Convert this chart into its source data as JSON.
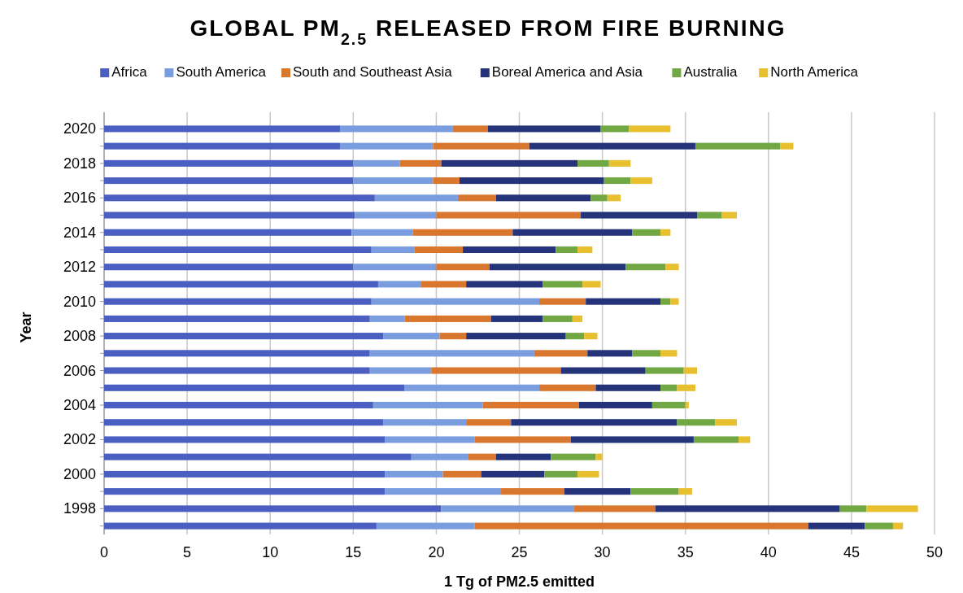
{
  "chart_data": {
    "type": "bar",
    "orientation": "horizontal",
    "stacked": true,
    "title": "GLOBAL PM$_{2.5}$ RELEASED FROM FIRE BURNING",
    "xlabel": "1 Tg of PM2.5 emitted",
    "ylabel": "Year",
    "categories": [
      "2020",
      null,
      "2018",
      null,
      "2016",
      null,
      "2014",
      null,
      "2012",
      null,
      "2010",
      null,
      "2008",
      null,
      "2006",
      null,
      "2004",
      null,
      "2002",
      null,
      "2000",
      null,
      "1998",
      null
    ],
    "series": [
      {
        "name": "Africa",
        "color": "#4a5fc1",
        "values": [
          14.2,
          14.2,
          15.0,
          15.0,
          16.3,
          15.1,
          14.9,
          16.1,
          15.0,
          16.5,
          16.1,
          16.0,
          16.8,
          16.0,
          16.0,
          18.1,
          16.2,
          16.8,
          16.9,
          18.5,
          16.9,
          16.9,
          20.3,
          16.4
        ]
      },
      {
        "name": "South America",
        "color": "#7a9de0",
        "values": [
          6.8,
          5.6,
          2.8,
          4.8,
          5.0,
          4.9,
          3.7,
          2.6,
          5.0,
          2.6,
          10.1,
          2.1,
          3.4,
          9.9,
          3.7,
          8.1,
          6.6,
          5.0,
          5.4,
          3.4,
          3.5,
          7.0,
          8.0,
          5.9
        ]
      },
      {
        "name": "South and Southeast Asia",
        "color": "#d9772f",
        "values": [
          2.1,
          5.8,
          2.5,
          1.6,
          2.3,
          8.7,
          6.0,
          2.9,
          3.2,
          2.7,
          2.8,
          5.2,
          1.6,
          3.2,
          7.8,
          3.4,
          5.8,
          2.7,
          5.8,
          1.7,
          2.3,
          3.8,
          4.9,
          20.1
        ]
      },
      {
        "name": "Boreal America and Asia",
        "color": "#25347a",
        "values": [
          6.8,
          10.0,
          8.2,
          8.7,
          5.7,
          7.0,
          7.2,
          5.6,
          8.2,
          4.6,
          4.5,
          3.1,
          6.0,
          2.7,
          5.1,
          3.9,
          4.4,
          10.0,
          7.4,
          3.3,
          3.8,
          4.0,
          11.1,
          3.4
        ]
      },
      {
        "name": "Australia",
        "color": "#72a843",
        "values": [
          1.7,
          5.1,
          1.9,
          1.6,
          1.0,
          1.5,
          1.7,
          1.3,
          2.4,
          2.4,
          0.6,
          1.8,
          1.1,
          1.7,
          2.3,
          1.0,
          2.0,
          2.3,
          2.7,
          2.7,
          2.0,
          2.9,
          1.6,
          1.7
        ]
      },
      {
        "name": "North America",
        "color": "#e8bf2e",
        "values": [
          2.5,
          0.8,
          1.3,
          1.3,
          0.8,
          0.9,
          0.6,
          0.9,
          0.8,
          1.1,
          0.5,
          0.6,
          0.8,
          1.0,
          0.8,
          1.1,
          0.2,
          1.3,
          0.7,
          0.4,
          1.3,
          0.8,
          3.1,
          0.6
        ]
      }
    ],
    "xlim": [
      0,
      50
    ],
    "xticks": [
      0,
      5,
      10,
      15,
      20,
      25,
      30,
      35,
      40,
      45,
      50
    ],
    "grid": "x",
    "legend": "top"
  }
}
